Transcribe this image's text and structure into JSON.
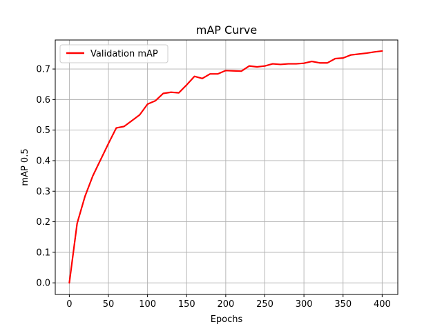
{
  "chart_data": {
    "type": "line",
    "title": "mAP Curve",
    "xlabel": "Epochs",
    "ylabel": "mAP 0.5",
    "xlim": [
      -18,
      420
    ],
    "ylim": [
      -0.038,
      0.795
    ],
    "xticks": [
      0,
      50,
      100,
      150,
      200,
      250,
      300,
      350,
      400
    ],
    "yticks": [
      0.0,
      0.1,
      0.2,
      0.3,
      0.4,
      0.5,
      0.6,
      0.7
    ],
    "ytick_labels": [
      "0.0",
      "0.1",
      "0.2",
      "0.3",
      "0.4",
      "0.5",
      "0.6",
      "0.7"
    ],
    "grid": true,
    "legend_position": "top-left",
    "series": [
      {
        "name": "Validation mAP",
        "color": "#ff0000",
        "x": [
          0,
          10,
          20,
          30,
          40,
          50,
          60,
          70,
          80,
          90,
          100,
          110,
          120,
          130,
          140,
          150,
          160,
          170,
          180,
          190,
          200,
          210,
          220,
          230,
          240,
          250,
          260,
          270,
          280,
          290,
          300,
          310,
          320,
          330,
          340,
          350,
          360,
          370,
          380,
          390,
          400
        ],
        "y": [
          0.0,
          0.195,
          0.283,
          0.35,
          0.403,
          0.456,
          0.507,
          0.512,
          0.531,
          0.55,
          0.585,
          0.596,
          0.62,
          0.624,
          0.622,
          0.648,
          0.676,
          0.669,
          0.684,
          0.684,
          0.695,
          0.694,
          0.693,
          0.71,
          0.707,
          0.71,
          0.717,
          0.715,
          0.717,
          0.717,
          0.719,
          0.725,
          0.72,
          0.72,
          0.734,
          0.736,
          0.746,
          0.749,
          0.752,
          0.756,
          0.759
        ]
      }
    ]
  }
}
